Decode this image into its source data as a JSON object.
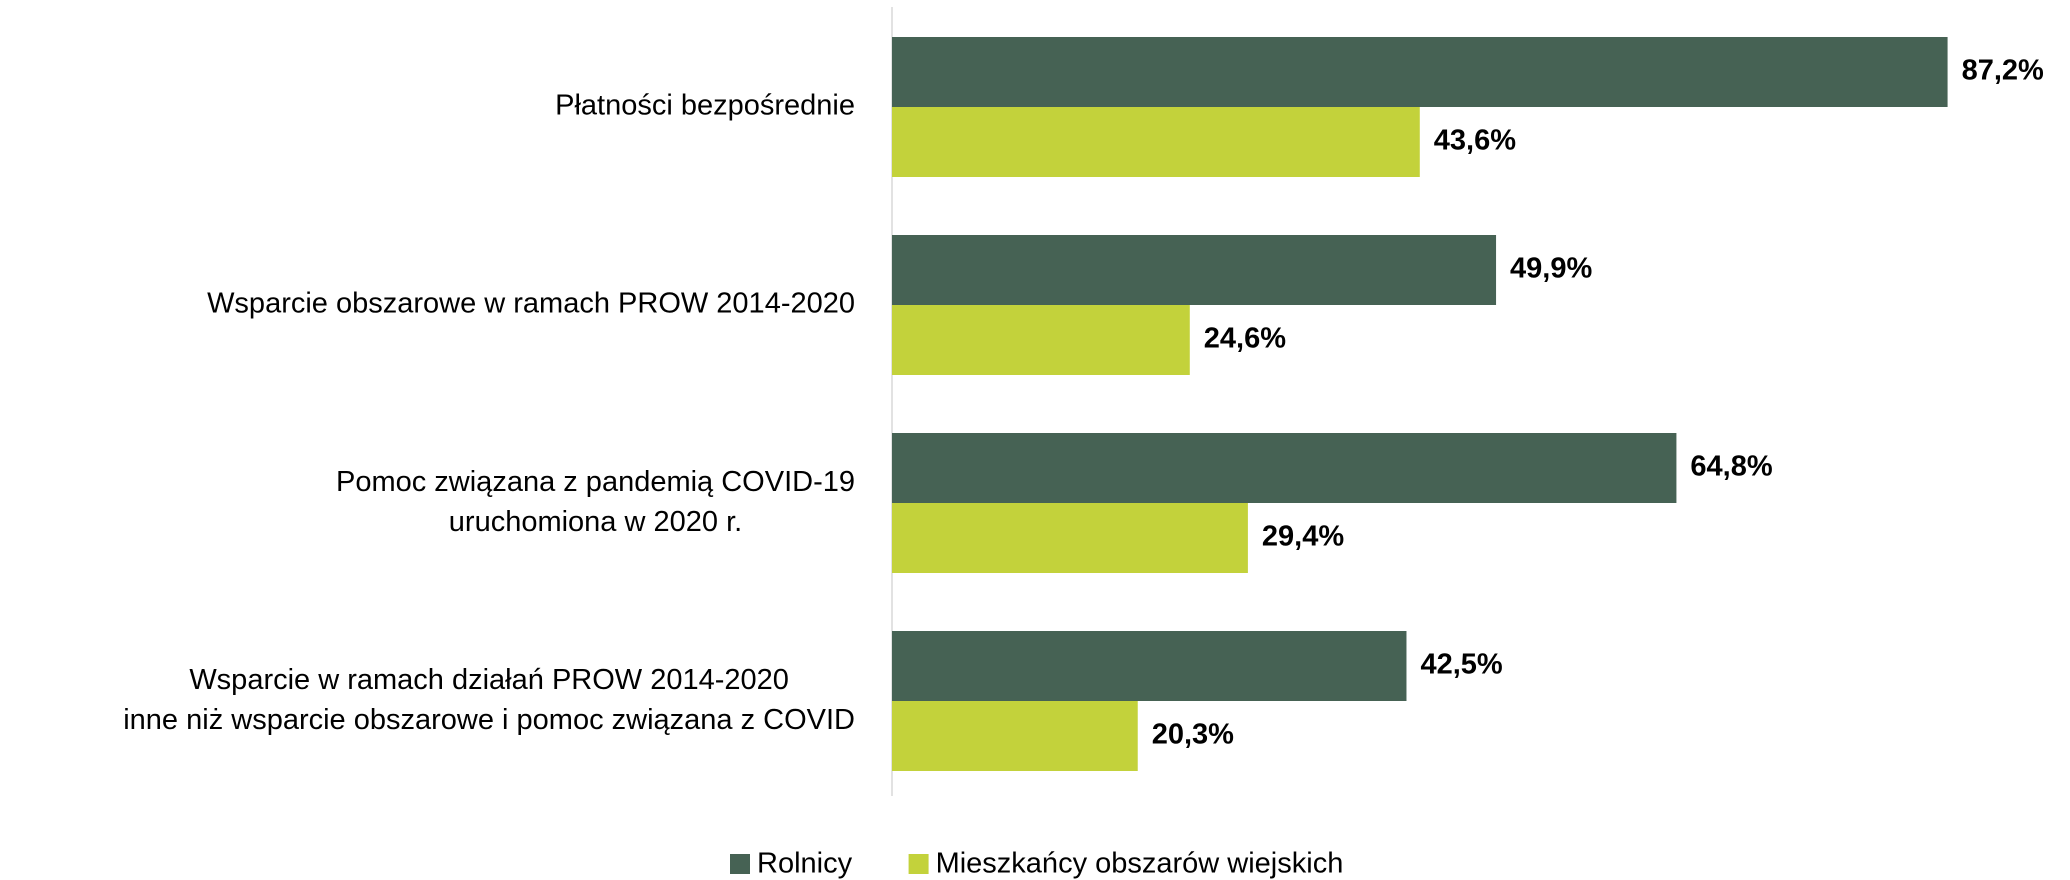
{
  "chart_data": {
    "type": "bar",
    "orientation": "horizontal",
    "categories": [
      "Płatności bezpośrednie",
      "Wsparcie obszarowe w ramach PROW 2014-2020",
      "Pomoc związana z pandemią COVID-19\nuruchomiona w 2020 r.",
      "Wsparcie w ramach działań PROW 2014-2020\ninne niż wsparcie obszarowe i pomoc związana z COVID"
    ],
    "series": [
      {
        "name": "Rolnicy",
        "color": "#466254",
        "values": [
          87.2,
          49.9,
          64.8,
          42.5
        ],
        "value_labels": [
          "87,2%",
          "49,9%",
          "64,8%",
          "42,5%"
        ]
      },
      {
        "name": "Mieszkańcy obszarów wiejskich",
        "color": "#c3d23b",
        "values": [
          43.6,
          24.6,
          29.4,
          20.3
        ],
        "value_labels": [
          "43,6%",
          "24,6%",
          "29,4%",
          "20,3%"
        ]
      }
    ],
    "xlim": [
      0,
      95
    ],
    "legend": "bottom"
  }
}
